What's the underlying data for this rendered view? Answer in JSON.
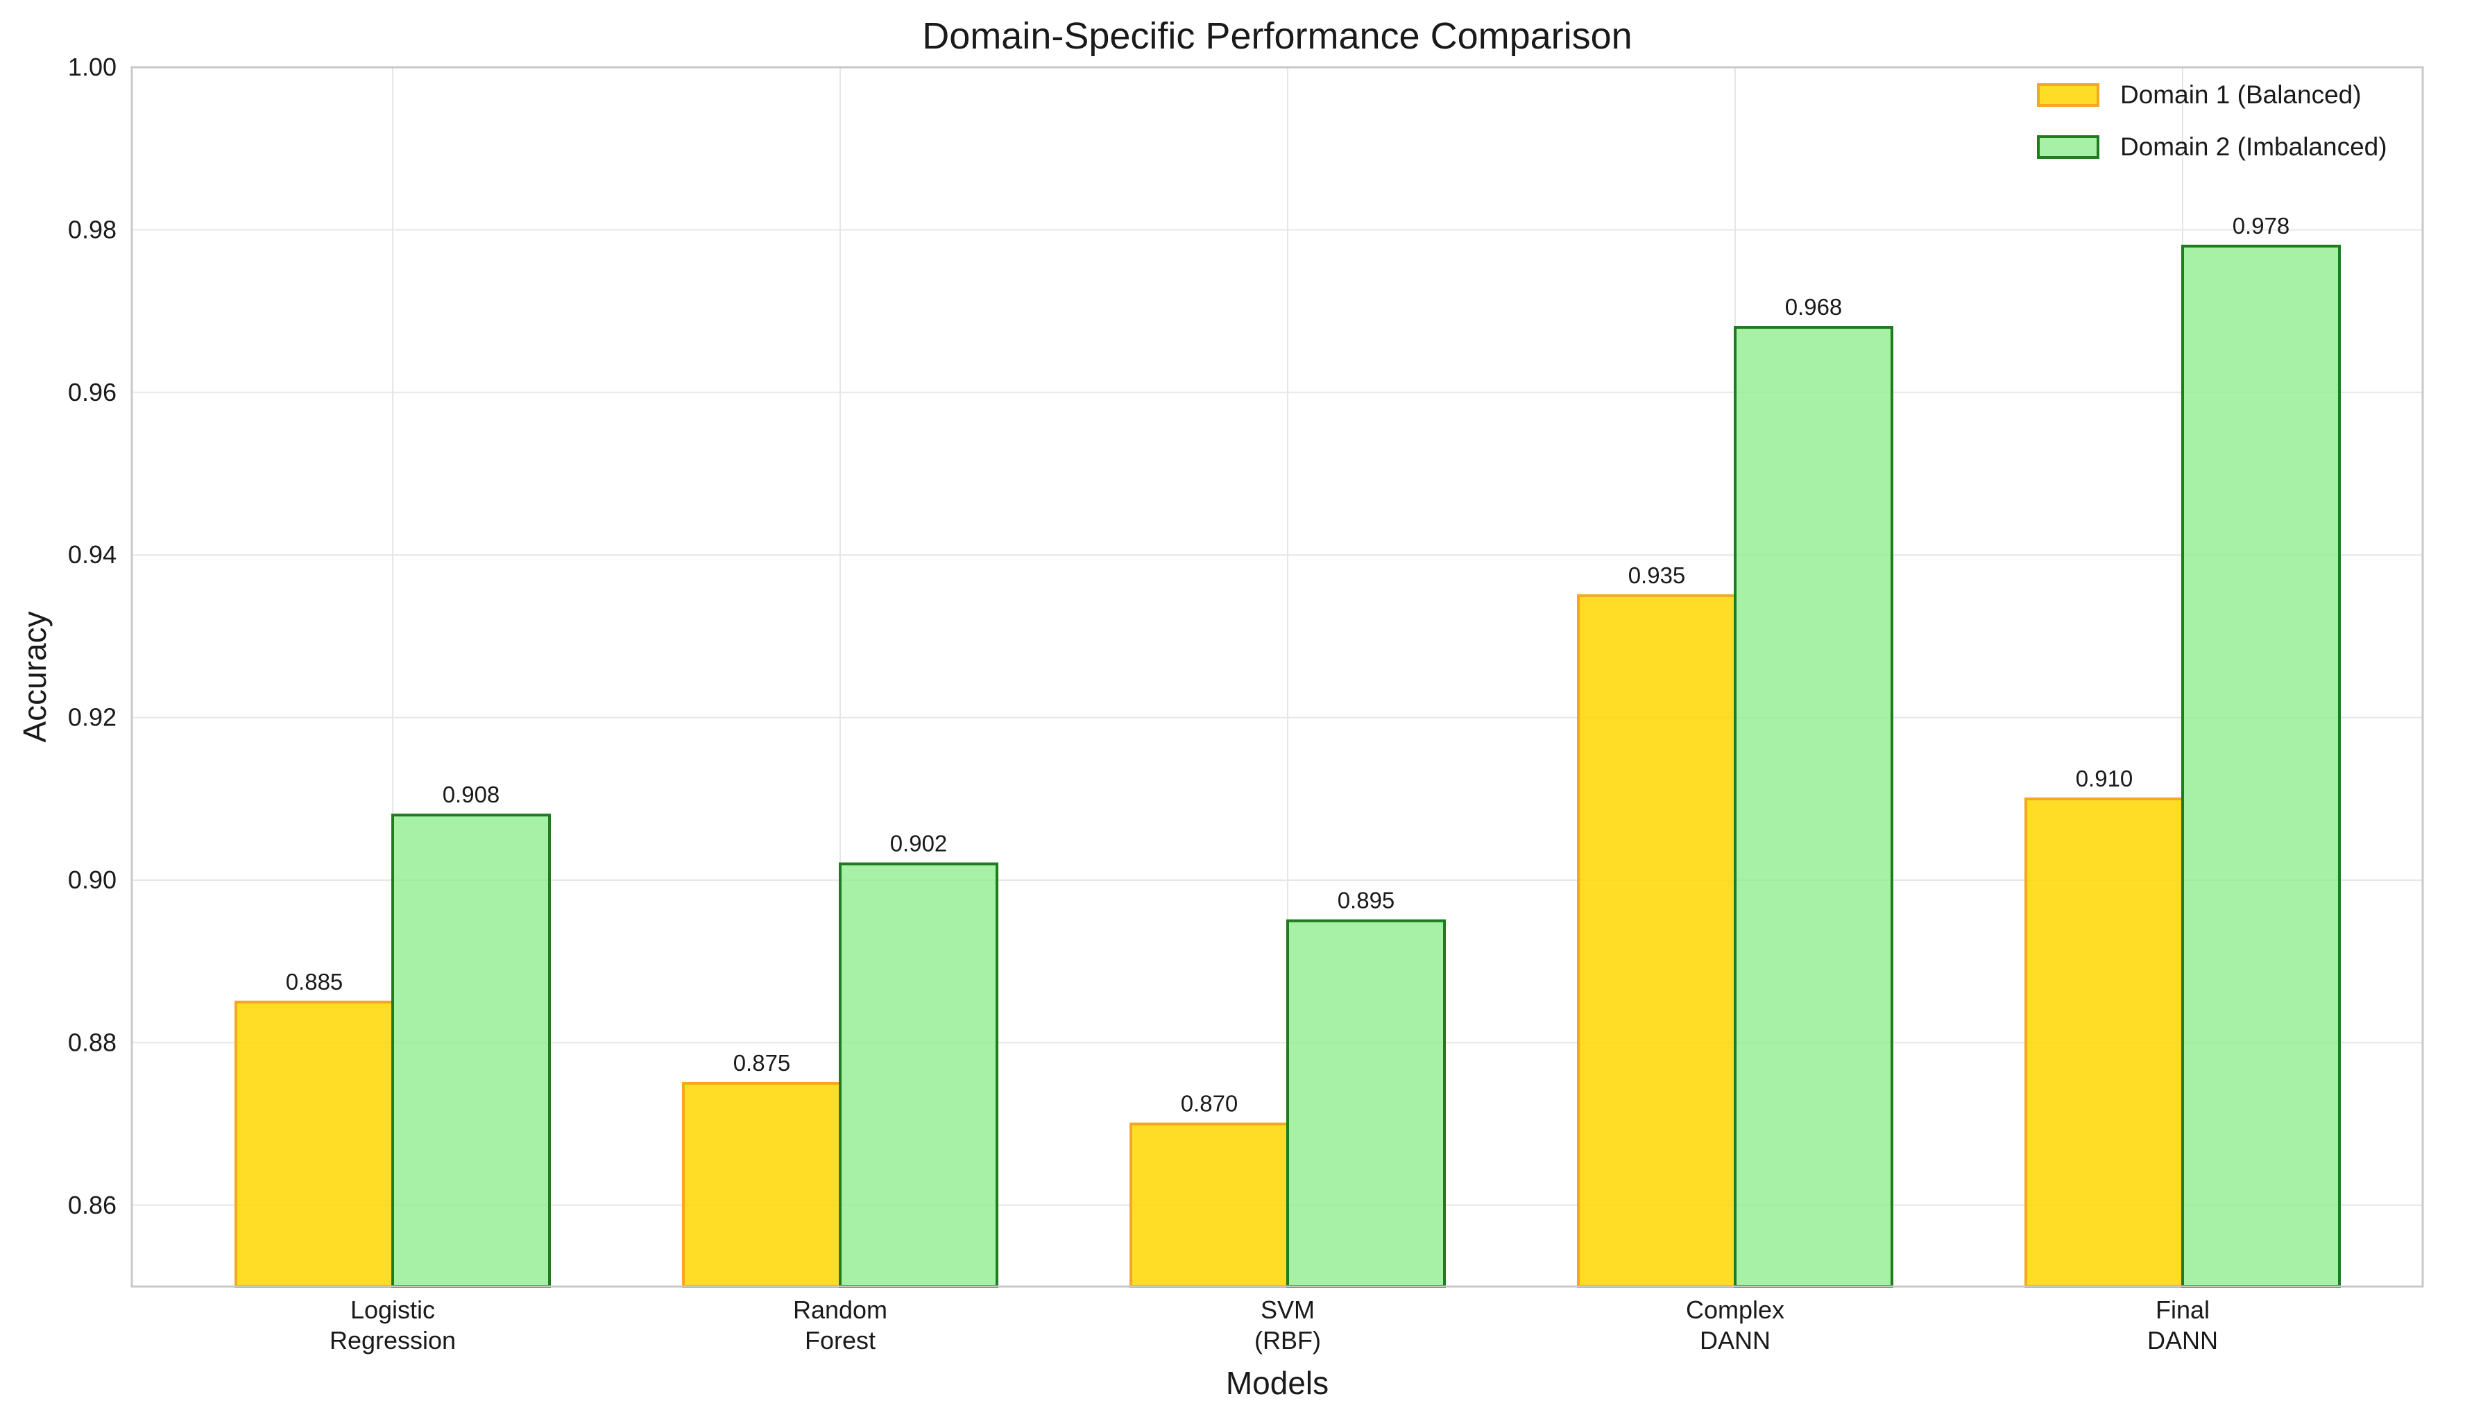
{
  "chart_data": {
    "type": "bar",
    "title": "Domain-Specific Performance Comparison",
    "xlabel": "Models",
    "ylabel": "Accuracy",
    "ylim": [
      0.85,
      1.0
    ],
    "yticks": [
      "0.86",
      "0.88",
      "0.90",
      "0.92",
      "0.94",
      "0.96",
      "0.98",
      "1.00"
    ],
    "grid": true,
    "legend_position": "top-right",
    "categories": [
      [
        "Logistic",
        "Regression"
      ],
      [
        "Random",
        "Forest"
      ],
      [
        "SVM",
        "(RBF)"
      ],
      [
        "Complex",
        "DANN"
      ],
      [
        "Final",
        "DANN"
      ]
    ],
    "series": [
      {
        "name": "Domain 1 (Balanced)",
        "fill": "#ffd700",
        "stroke": "#f5a623",
        "values": [
          0.885,
          0.875,
          0.87,
          0.935,
          0.91
        ],
        "labels": [
          "0.885",
          "0.875",
          "0.870",
          "0.935",
          "0.910"
        ]
      },
      {
        "name": "Domain 2 (Imbalanced)",
        "fill": "#90ee90",
        "stroke": "#1e7b1e",
        "values": [
          0.908,
          0.902,
          0.895,
          0.968,
          0.978
        ],
        "labels": [
          "0.908",
          "0.902",
          "0.895",
          "0.968",
          "0.978"
        ]
      }
    ]
  }
}
